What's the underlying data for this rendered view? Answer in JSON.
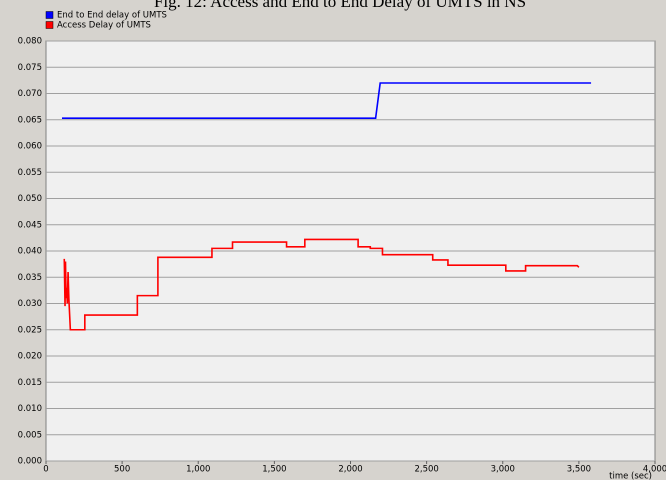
{
  "chart_data": {
    "type": "line",
    "title": "Fig. 12:   Access and End to End Delay of UMTS in NS",
    "x_label": "time (sec)",
    "xlim": [
      0,
      4000
    ],
    "xticks": [
      0,
      500,
      {
        "value": 1000,
        "label": "1,000"
      },
      {
        "value": 1500,
        "label": "1,500"
      },
      {
        "value": 2000,
        "label": "2,000"
      },
      {
        "value": 2500,
        "label": "2,500"
      },
      {
        "value": 3000,
        "label": "3,000"
      },
      {
        "value": 3500,
        "label": "3,500"
      },
      {
        "value": 4000,
        "label": "4,000"
      }
    ],
    "ylim": [
      0,
      0.08
    ],
    "yticks": [
      {
        "value": 0,
        "label": "0.000"
      },
      0.005,
      {
        "value": 0.01,
        "label": "0.010"
      },
      0.015,
      {
        "value": 0.02,
        "label": "0.020"
      },
      0.025,
      {
        "value": 0.03,
        "label": "0.030"
      },
      0.035,
      {
        "value": 0.04,
        "label": "0.040"
      },
      0.045,
      {
        "value": 0.05,
        "label": "0.050"
      },
      0.055,
      {
        "value": 0.06,
        "label": "0.060"
      },
      0.065,
      {
        "value": 0.07,
        "label": "0.070"
      },
      0.075,
      {
        "value": 0.08,
        "label": "0.080"
      }
    ],
    "grid": true,
    "legend": "top-left",
    "series": [
      {
        "name": "End to End delay of UMTS",
        "color": "#0000ff",
        "x": [
          105,
          2165,
          2195,
          3580
        ],
        "values": [
          0.0653,
          0.0653,
          0.072,
          0.072
        ]
      },
      {
        "name": "Access Delay of UMTS",
        "color": "#ff0000",
        "x": [
          120,
          125,
          128,
          132,
          136,
          140,
          145,
          150,
          160,
          255,
          255,
          600,
          600,
          735,
          735,
          1090,
          1090,
          1225,
          1225,
          1580,
          1580,
          1700,
          1700,
          2050,
          2050,
          2130,
          2130,
          2210,
          2210,
          2540,
          2540,
          2640,
          2640,
          3020,
          3020,
          3150,
          3150,
          3490,
          3500
        ],
        "values": [
          0.0385,
          0.0295,
          0.038,
          0.031,
          0.033,
          0.03,
          0.036,
          0.031,
          0.025,
          0.025,
          0.0278,
          0.0278,
          0.0315,
          0.0315,
          0.0388,
          0.0388,
          0.0405,
          0.0405,
          0.0417,
          0.0417,
          0.0408,
          0.0408,
          0.0422,
          0.0422,
          0.0408,
          0.0408,
          0.0405,
          0.0405,
          0.0393,
          0.0393,
          0.0383,
          0.0383,
          0.0373,
          0.0373,
          0.0362,
          0.0362,
          0.0372,
          0.0372,
          0.0369
        ]
      }
    ]
  }
}
